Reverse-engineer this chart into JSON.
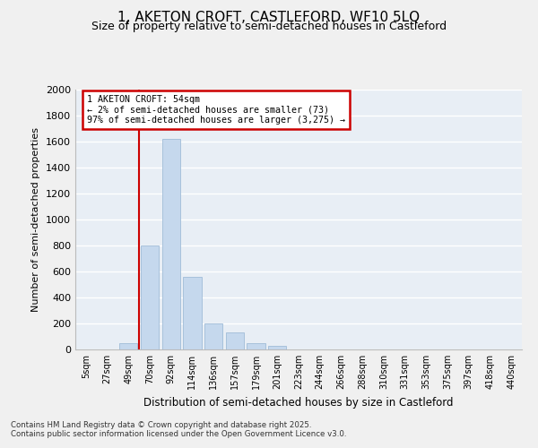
{
  "title_line1": "1, AKETON CROFT, CASTLEFORD, WF10 5LQ",
  "title_line2": "Size of property relative to semi-detached houses in Castleford",
  "xlabel": "Distribution of semi-detached houses by size in Castleford",
  "ylabel": "Number of semi-detached properties",
  "categories": [
    "5sqm",
    "27sqm",
    "49sqm",
    "70sqm",
    "92sqm",
    "114sqm",
    "136sqm",
    "157sqm",
    "179sqm",
    "201sqm",
    "223sqm",
    "244sqm",
    "266sqm",
    "288sqm",
    "310sqm",
    "331sqm",
    "353sqm",
    "375sqm",
    "397sqm",
    "418sqm",
    "440sqm"
  ],
  "values": [
    0,
    0,
    50,
    800,
    1620,
    560,
    200,
    130,
    50,
    30,
    0,
    0,
    0,
    0,
    0,
    0,
    0,
    0,
    0,
    0,
    0
  ],
  "bar_color": "#c5d8ed",
  "bar_edge_color": "#a0bcd8",
  "property_label": "1 AKETON CROFT: 54sqm",
  "annotation_line1": "← 2% of semi-detached houses are smaller (73)",
  "annotation_line2": "97% of semi-detached houses are larger (3,275) →",
  "annotation_box_facecolor": "#ffffff",
  "annotation_box_edgecolor": "#cc0000",
  "vline_color": "#cc0000",
  "vline_x": 2.5,
  "ylim": [
    0,
    2000
  ],
  "yticks": [
    0,
    200,
    400,
    600,
    800,
    1000,
    1200,
    1400,
    1600,
    1800,
    2000
  ],
  "footnote_line1": "Contains HM Land Registry data © Crown copyright and database right 2025.",
  "footnote_line2": "Contains public sector information licensed under the Open Government Licence v3.0.",
  "bg_color": "#f0f0f0",
  "plot_bg_color": "#e8eef5",
  "grid_color": "#ffffff"
}
